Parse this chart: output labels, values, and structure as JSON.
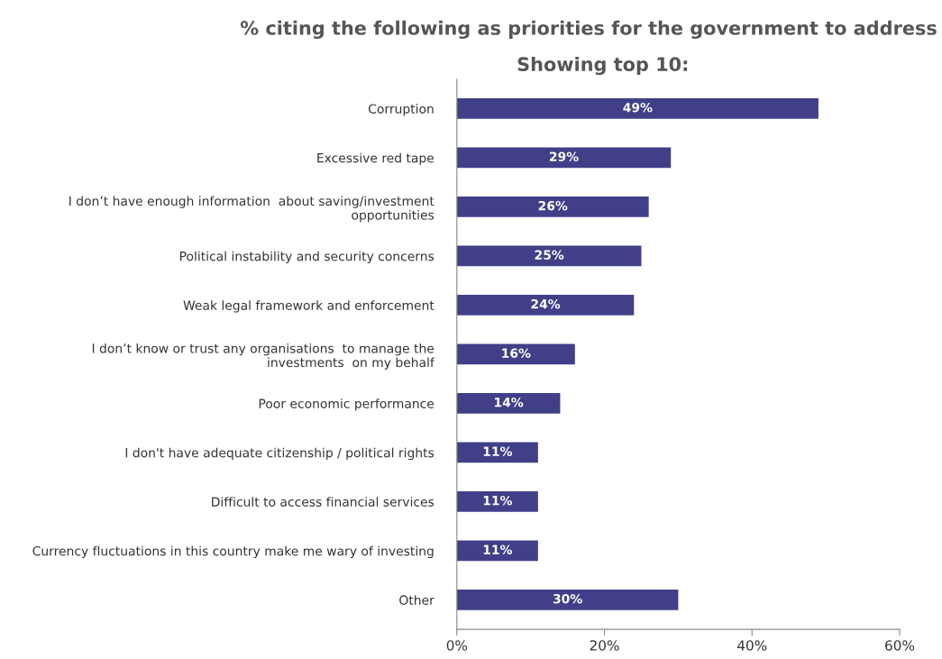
{
  "chart_data": {
    "type": "bar",
    "orientation": "horizontal",
    "title": "% citing the following as priorities for the government to address",
    "subtitle": "Showing top 10:",
    "categories": [
      "Corruption",
      "Excessive red tape",
      "I don’t have enough information  about saving/investment\nopportunities",
      "Political instability and security concerns",
      "Weak legal framework and enforcement",
      "I don’t know or trust any organisations  to manage the\ninvestments  on my behalf",
      "Poor economic performance",
      "I don't have adequate citizenship / political rights",
      "Difficult to access financial services",
      "Currency fluctuations in this country make me wary of investing",
      "Other"
    ],
    "values": [
      49,
      29,
      26,
      25,
      24,
      16,
      14,
      11,
      11,
      11,
      30
    ],
    "value_labels": [
      "49%",
      "29%",
      "26%",
      "25%",
      "24%",
      "16%",
      "14%",
      "11%",
      "11%",
      "11%",
      "30%"
    ],
    "color": "#403f88",
    "xlim": [
      0,
      60
    ],
    "xticks": [
      {
        "value": 0,
        "label": "0%"
      },
      {
        "value": 20,
        "label": "20%"
      },
      {
        "value": 40,
        "label": "40%"
      },
      {
        "value": 60,
        "label": "60%"
      }
    ],
    "grid": false,
    "legend": false
  }
}
